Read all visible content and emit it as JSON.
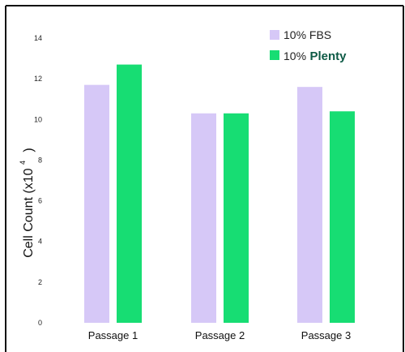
{
  "chart_data": {
    "type": "bar",
    "categories": [
      "Passage 1",
      "Passage 2",
      "Passage 3"
    ],
    "series": [
      {
        "name": "10% FBS",
        "label_prefix": "10%",
        "label_suffix": "FBS",
        "color": "#d6c8f7",
        "values": [
          11.7,
          10.3,
          11.6
        ]
      },
      {
        "name": "10% Plenty",
        "label_prefix": "10%",
        "label_suffix": "Plenty",
        "color": "#17dd73",
        "values": [
          12.7,
          10.3,
          10.4
        ]
      }
    ],
    "ylabel_main": "Cell Count (x10",
    "ylabel_exp": "4",
    "ylabel_close": ")",
    "yticks": [
      0,
      2,
      4,
      6,
      8,
      10,
      12,
      14
    ],
    "ylim": [
      0,
      14
    ],
    "legend_position": "top-right",
    "grid": false,
    "border_color": "#111111"
  }
}
